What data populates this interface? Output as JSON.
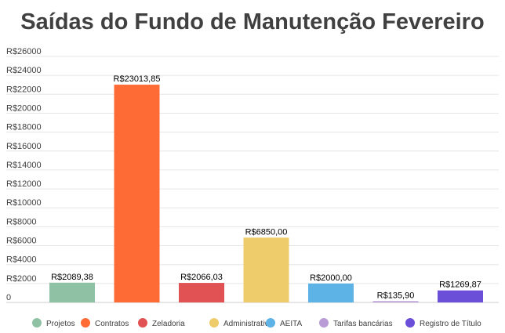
{
  "chart_data": {
    "type": "bar",
    "title": "Saídas do Fundo de Manutenção Fevereiro",
    "xlabel": "",
    "ylabel": "",
    "ylim": [
      0,
      26000
    ],
    "yticks": [
      0,
      2000,
      4000,
      6000,
      8000,
      10000,
      12000,
      14000,
      16000,
      18000,
      20000,
      22000,
      24000,
      26000
    ],
    "ytick_labels": [
      "0",
      "R$2000",
      "R$4000",
      "R$6000",
      "R$8000",
      "R$10000",
      "R$12000",
      "R$14000",
      "R$16000",
      "R$18000",
      "R$20000",
      "R$22000",
      "R$24000",
      "R$26000"
    ],
    "grid": true,
    "legend_position": "bottom",
    "series": [
      {
        "name": "Projetos",
        "value": 2089.38,
        "label": "R$2089,38",
        "color": "#8fc2a5"
      },
      {
        "name": "Contratos",
        "value": 23013.85,
        "label": "R$23013,85",
        "color": "#ff6b35"
      },
      {
        "name": "Zeladoria",
        "value": 2066.03,
        "label": "R$2066,03",
        "color": "#e05253"
      },
      {
        "name": "Administrativo",
        "value": 6850.0,
        "label": "R$6850,00",
        "color": "#efcc6b"
      },
      {
        "name": "AEITA",
        "value": 2000.0,
        "label": "R$2000,00",
        "color": "#5db3e6"
      },
      {
        "name": "Tarifas bancárias",
        "value": 135.9,
        "label": "R$135,90",
        "color": "#b99bd6"
      },
      {
        "name": "Registro de Título",
        "value": 1269.87,
        "label": "R$1269,87",
        "color": "#6b4fd8"
      }
    ]
  }
}
